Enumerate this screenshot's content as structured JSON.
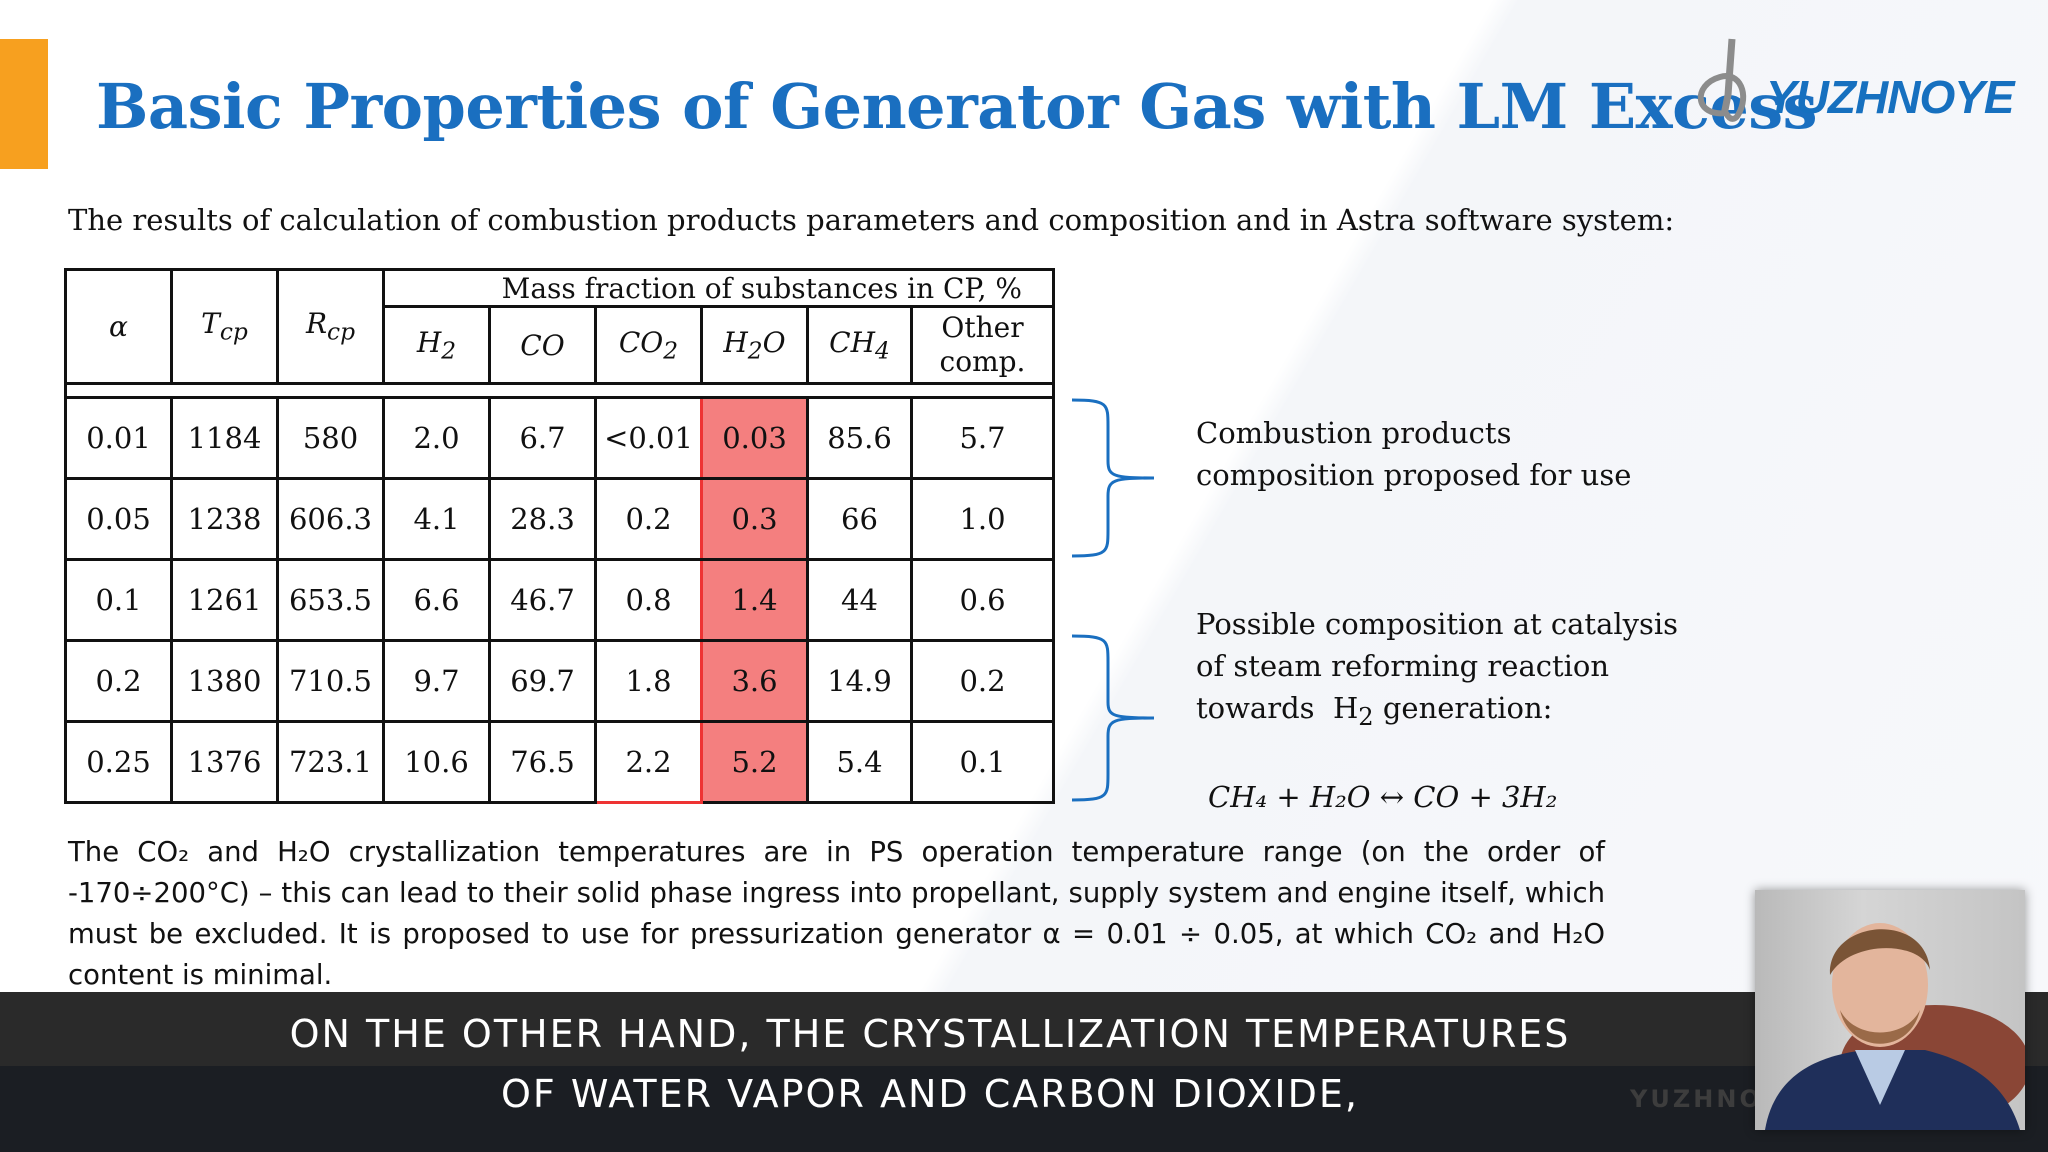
{
  "slide": {
    "title": "Basic Properties of Generator Gas with LM Excess",
    "logo_text": "YUZHNOYE",
    "intro": "The results of calculation of combustion products parameters and composition and in Astra software system:",
    "table": {
      "group_header": "Mass fraction of substances in CP, %",
      "headers": {
        "alpha": "α",
        "t_main": "T",
        "t_sub": "cp",
        "r_main": "R",
        "r_sub": "cp",
        "h2": "H",
        "h2_sub": "2",
        "co": "CO",
        "co2": "CO",
        "co2_sub": "2",
        "h2o_a": "H",
        "h2o_sub": "2",
        "h2o_b": "O",
        "ch4": "CH",
        "ch4_sub": "4",
        "other": "Other comp."
      },
      "rows": [
        [
          "0.01",
          "1184",
          "580",
          "2.0",
          "6.7",
          "<0.01",
          "0.03",
          "85.6",
          "5.7"
        ],
        [
          "0.05",
          "1238",
          "606.3",
          "4.1",
          "28.3",
          "0.2",
          "0.3",
          "66",
          "1.0"
        ],
        [
          "0.1",
          "1261",
          "653.5",
          "6.6",
          "46.7",
          "0.8",
          "1.4",
          "44",
          "0.6"
        ],
        [
          "0.2",
          "1380",
          "710.5",
          "9.7",
          "69.7",
          "1.8",
          "3.6",
          "14.9",
          "0.2"
        ],
        [
          "0.25",
          "1376",
          "723.1",
          "10.6",
          "76.5",
          "2.2",
          "5.2",
          "5.4",
          "0.1"
        ]
      ]
    },
    "note1": [
      "Combustion products",
      "composition proposed for use"
    ],
    "note2": [
      "Possible composition at catalysis",
      "of steam reforming reaction"
    ],
    "note2_last": "towards  H",
    "note2_sub": "2",
    "note2_end": " generation:",
    "equation": "CH₄ + H₂O ↔ CO + 3H₂",
    "paragraph": "The CO₂ and H₂O crystallization temperatures are in PS operation temperature range (on the order of -170÷200°C) – this can lead to their solid phase ingress into propellant, supply system and engine itself, which must be excluded. It is proposed to use for pressurization generator α = 0.01 ÷ 0.05, at which CO₂ and H₂O content is minimal."
  },
  "subtitles": [
    "On the other hand, the crystallization temperatures",
    "of water vapor and carbon dioxide,"
  ],
  "watermark": "YUZHNOYE",
  "colors": {
    "title": "#1a6fc0",
    "accent": "#f7a01f",
    "highlight": "#f47f7f"
  }
}
